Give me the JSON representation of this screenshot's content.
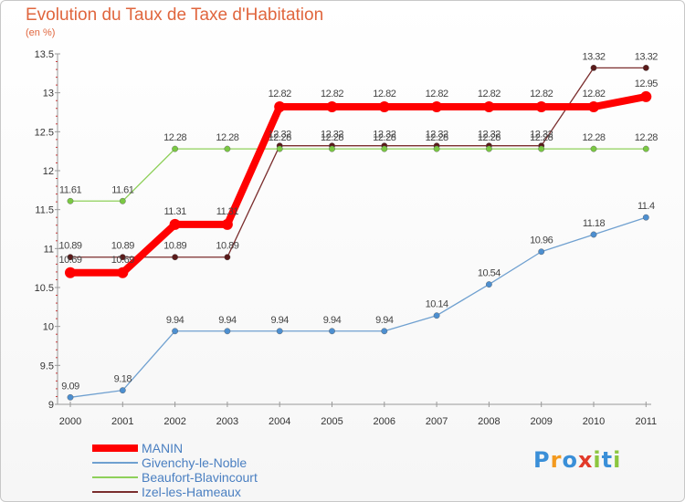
{
  "header": {
    "title": "Evolution du Taux de Taxe d'Habitation",
    "subtitle": "(en %)"
  },
  "brand": {
    "name": "Proxiti",
    "letters": [
      "P",
      "r",
      "o",
      "x",
      "i",
      "t",
      "i"
    ],
    "letter_colors": [
      "#3a8fd8",
      "#f39a1f",
      "#3a8fd8",
      "#e23a2a",
      "#8cc63f",
      "#3a8fd8",
      "#8cc63f"
    ]
  },
  "chart_data": {
    "type": "line",
    "title": "Evolution du Taux de Taxe d'Habitation",
    "subtitle": "(en %)",
    "xlabel": "",
    "ylabel": "",
    "x": [
      "2000",
      "2001",
      "2002",
      "2003",
      "2004",
      "2005",
      "2006",
      "2007",
      "2008",
      "2009",
      "2010",
      "2011"
    ],
    "ylim": [
      9,
      13.5
    ],
    "yticks": [
      9,
      9.5,
      10,
      10.5,
      11,
      11.5,
      12,
      12.5,
      13,
      13.5
    ],
    "ytick_labels": [
      "9",
      "9.5",
      "10",
      "10.5",
      "11",
      "11.5",
      "12",
      "12.5",
      "13",
      "13.5"
    ],
    "grid": false,
    "legend_position": "bottom-left",
    "series": [
      {
        "name": "Izel-les-Hameaux",
        "color": "#7a2d2d",
        "marker": "#5a1a1a",
        "values": [
          10.89,
          10.89,
          10.89,
          10.89,
          12.32,
          12.32,
          12.32,
          12.32,
          12.32,
          12.32,
          13.32,
          13.32
        ],
        "labels": [
          "10.89",
          "10.89",
          "10.89",
          "10.89",
          "12.32",
          "12.32",
          "12.32",
          "12.32",
          "12.32",
          "12.32",
          "13.32",
          "13.32"
        ]
      },
      {
        "name": "Beaufort-Blavincourt",
        "color": "#8ed05a",
        "marker": "#7ac843",
        "values": [
          11.61,
          11.61,
          12.28,
          12.28,
          12.28,
          12.28,
          12.28,
          12.28,
          12.28,
          12.28,
          12.28,
          12.28
        ],
        "labels": [
          "11.61",
          "11.61",
          "12.28",
          "12.28",
          "12.28",
          "12.28",
          "12.28",
          "12.28",
          "12.28",
          "12.28",
          "12.28",
          "12.28"
        ]
      },
      {
        "name": "Givenchy-le-Noble",
        "color": "#6fa0d0",
        "marker": "#4d8fd0",
        "values": [
          9.09,
          9.18,
          9.94,
          9.94,
          9.94,
          9.94,
          9.94,
          10.14,
          10.54,
          10.96,
          11.18,
          11.4
        ],
        "labels": [
          "9.09",
          "9.18",
          "9.94",
          "9.94",
          "9.94",
          "9.94",
          "9.94",
          "10.14",
          "10.54",
          "10.96",
          "11.18",
          "11.4"
        ]
      },
      {
        "name": "MANIN",
        "color": "#ff0000",
        "marker": "#ff0000",
        "values": [
          10.69,
          10.69,
          11.31,
          11.31,
          12.82,
          12.82,
          12.82,
          12.82,
          12.82,
          12.82,
          12.82,
          12.95
        ],
        "labels": [
          "10.69",
          "10.69",
          "11.31",
          "11.31",
          "12.82",
          "12.82",
          "12.82",
          "12.82",
          "12.82",
          "12.82",
          "12.82",
          "12.95"
        ]
      }
    ],
    "legend": [
      {
        "name": "MANIN",
        "color": "#ff0000",
        "text_color": "#4a7fc1"
      },
      {
        "name": "Givenchy-le-Noble",
        "color": "#6fa0d0",
        "text_color": "#4a7fc1"
      },
      {
        "name": "Beaufort-Blavincourt",
        "color": "#8ed05a",
        "text_color": "#4a7fc1"
      },
      {
        "name": "Izel-les-Hameaux",
        "color": "#7a2d2d",
        "text_color": "#4a7fc1"
      }
    ]
  }
}
